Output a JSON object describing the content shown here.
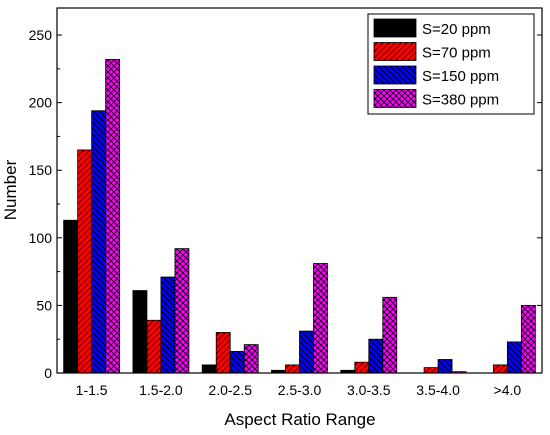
{
  "chart_data": {
    "type": "bar",
    "xlabel": "Aspect Ratio Range",
    "ylabel": "Number",
    "categories": [
      "1-1.5",
      "1.5-2.0",
      "2.0-2.5",
      "2.5-3.0",
      "3.0-3.5",
      "3.5-4.0",
      ">4.0"
    ],
    "ylim": [
      0,
      270
    ],
    "yticks": [
      0,
      50,
      100,
      150,
      200,
      250
    ],
    "grid": false,
    "legend_position": "top-right",
    "series": [
      {
        "name": "S=20 ppm",
        "values": [
          113,
          61,
          6,
          2,
          2,
          0,
          0
        ],
        "color": "#000000",
        "pattern": "solid"
      },
      {
        "name": "S=70 ppm",
        "values": [
          165,
          39,
          30,
          6,
          8,
          4,
          6
        ],
        "color": "#ff0000",
        "pattern": "diag-right"
      },
      {
        "name": "S=150 ppm",
        "values": [
          194,
          71,
          16,
          31,
          25,
          10,
          23
        ],
        "color": "#0000ff",
        "pattern": "diag-left"
      },
      {
        "name": "S=380 ppm",
        "values": [
          232,
          92,
          21,
          81,
          56,
          1,
          50
        ],
        "color": "#ff00ff",
        "pattern": "crosshatch"
      }
    ]
  }
}
